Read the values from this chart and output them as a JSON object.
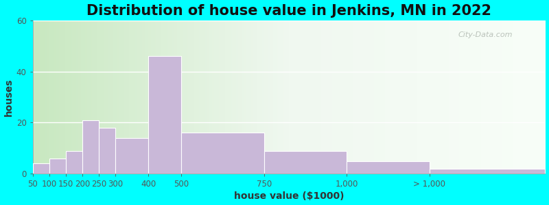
{
  "title": "Distribution of house value in Jenkins, MN in 2022",
  "xlabel": "house value ($1000)",
  "ylabel": "houses",
  "bar_color": "#c9b8d8",
  "bar_edgecolor": "#ffffff",
  "outer_background": "#00ffff",
  "plot_bg_color": "#e8f5e2",
  "yticks": [
    0,
    20,
    40,
    60
  ],
  "ylim": [
    0,
    60
  ],
  "bin_edges": [
    50,
    100,
    150,
    200,
    250,
    300,
    400,
    500,
    750,
    1000,
    1250,
    1600
  ],
  "xtick_positions": [
    50,
    100,
    150,
    200,
    250,
    300,
    400,
    500,
    750,
    1000,
    1250
  ],
  "xtick_labels": [
    "50",
    "100",
    "150",
    "200",
    "250",
    "300",
    "400",
    "500",
    "750",
    "1,000",
    "> 1,000"
  ],
  "values": [
    4,
    6,
    9,
    21,
    18,
    14,
    46,
    16,
    9,
    5,
    2
  ],
  "title_fontsize": 15,
  "axis_label_fontsize": 10,
  "tick_fontsize": 8.5
}
